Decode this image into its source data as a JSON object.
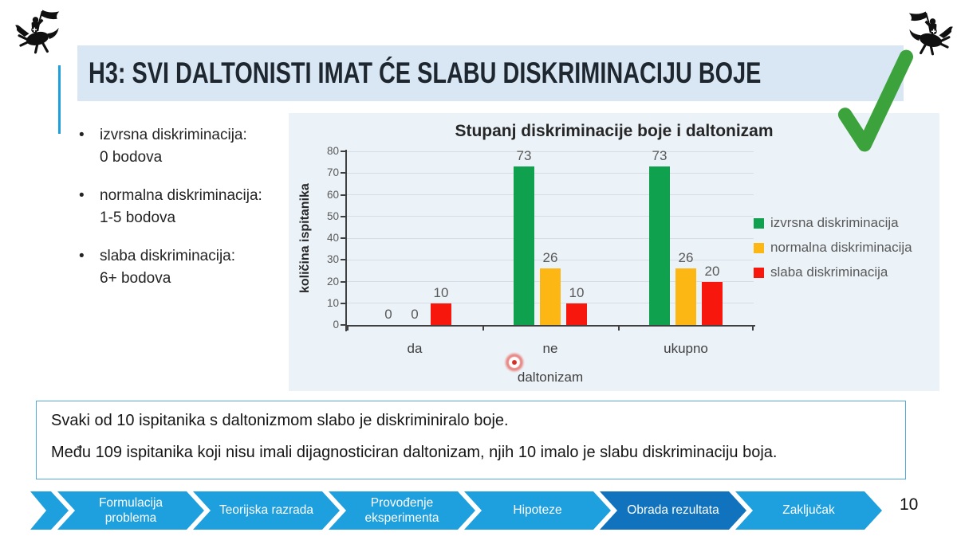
{
  "slide": {
    "title": "H3: SVI DALTONISTI IMAT ĆE SLABU DISKRIMINACIJU BOJE",
    "page_number": "10"
  },
  "bullets": [
    {
      "term": "izvrsna diskriminacija:",
      "detail": "0 bodova"
    },
    {
      "term": "normalna diskriminacija:",
      "detail": "1-5 bodova"
    },
    {
      "term": "slaba diskriminacija:",
      "detail": "6+ bodova"
    }
  ],
  "chart_data": {
    "type": "bar",
    "title": "Stupanj diskriminacije boje i daltonizam",
    "categories": [
      "da",
      "ne",
      "ukupno"
    ],
    "series": [
      {
        "name": "izvrsna diskriminacija",
        "color": "#0FA14E",
        "values": [
          0,
          73,
          73
        ]
      },
      {
        "name": "normalna diskriminacija",
        "color": "#FDB714",
        "values": [
          0,
          26,
          26
        ]
      },
      {
        "name": "slaba diskriminacija",
        "color": "#F8170D",
        "values": [
          10,
          10,
          20
        ]
      }
    ],
    "xlabel": "daltonizam",
    "ylabel": "količina ispitanika",
    "ylim": [
      0,
      80
    ],
    "ytick_step": 10,
    "grid": true,
    "legend_position": "right"
  },
  "findings": [
    "Svaki od 10 ispitanika s daltonizmom slabo je diskriminiralo boje.",
    "Među 109 ispitanika koji nisu imali dijagnosticiran daltonizam, njih 10 imalo je slabu diskriminaciju boja."
  ],
  "nav": {
    "steps": [
      {
        "label": "Formulacija problema",
        "active": false
      },
      {
        "label": "Teorijska razrada",
        "active": false
      },
      {
        "label": "Provođenje eksperimenta",
        "active": false
      },
      {
        "label": "Hipoteze",
        "active": false
      },
      {
        "label": "Obrada rezultata",
        "active": true
      },
      {
        "label": "Zaključak",
        "active": false
      }
    ]
  },
  "colors": {
    "accent_blue": "#1E9FDE",
    "active_blue": "#1173BD",
    "title_bar_bg": "#D9E6F3",
    "panel_bg": "#EBF2F8",
    "checkmark_green": "#3CA23C"
  }
}
